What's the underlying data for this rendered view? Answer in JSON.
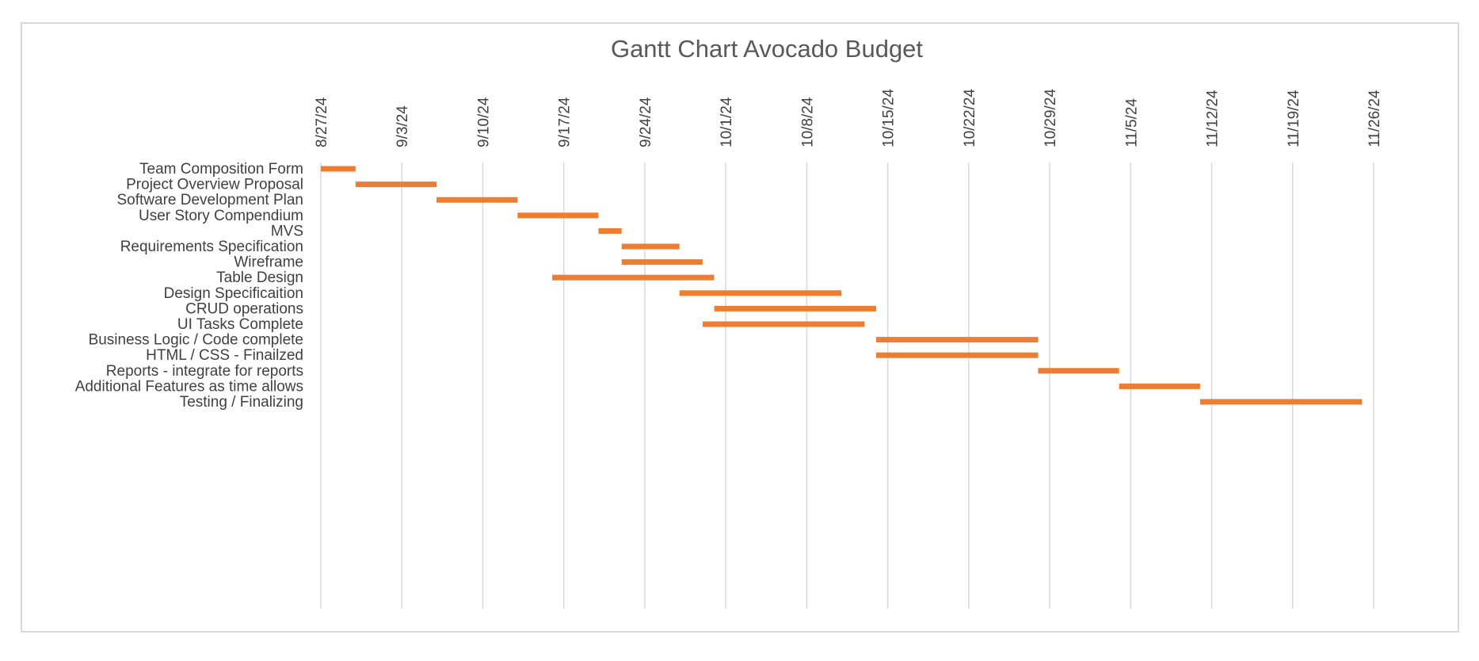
{
  "chart_data": {
    "type": "bar",
    "subtype": "gantt",
    "title": "Gantt Chart Avocado Budget",
    "xlabel": "",
    "ylabel": "",
    "x_axis_position": "top",
    "x_tick_labels": [
      "8/27/24",
      "9/3/24",
      "9/10/24",
      "9/17/24",
      "9/24/24",
      "10/1/24",
      "10/8/24",
      "10/15/24",
      "10/22/24",
      "10/29/24",
      "11/5/24",
      "11/12/24",
      "11/19/24",
      "11/26/24"
    ],
    "xlim": [
      "2024-08-27",
      "2024-11-26"
    ],
    "grid": "vertical",
    "bar_color": "#ed7d31",
    "tasks": [
      {
        "name": "Team Composition Form",
        "start": "2024-08-27",
        "end": "2024-08-30"
      },
      {
        "name": "Project Overview Proposal",
        "start": "2024-08-30",
        "end": "2024-09-06"
      },
      {
        "name": "Software Development Plan",
        "start": "2024-09-06",
        "end": "2024-09-13"
      },
      {
        "name": "User Story Compendium",
        "start": "2024-09-13",
        "end": "2024-09-20"
      },
      {
        "name": "MVS",
        "start": "2024-09-20",
        "end": "2024-09-22"
      },
      {
        "name": "Requirements Specification",
        "start": "2024-09-22",
        "end": "2024-09-27"
      },
      {
        "name": "Wireframe",
        "start": "2024-09-22",
        "end": "2024-09-29"
      },
      {
        "name": "Table Design",
        "start": "2024-09-16",
        "end": "2024-09-30"
      },
      {
        "name": "Design Specificaition",
        "start": "2024-09-27",
        "end": "2024-10-11"
      },
      {
        "name": "CRUD operations",
        "start": "2024-09-30",
        "end": "2024-10-14"
      },
      {
        "name": "UI Tasks Complete",
        "start": "2024-09-29",
        "end": "2024-10-13"
      },
      {
        "name": "Business Logic / Code complete",
        "start": "2024-10-14",
        "end": "2024-10-28"
      },
      {
        "name": "HTML / CSS - Finailzed",
        "start": "2024-10-14",
        "end": "2024-10-28"
      },
      {
        "name": "Reports - integrate for reports",
        "start": "2024-10-28",
        "end": "2024-11-04"
      },
      {
        "name": "Additional Features as time allows",
        "start": "2024-11-04",
        "end": "2024-11-11"
      },
      {
        "name": "Testing / Finalizing",
        "start": "2024-11-11",
        "end": "2024-11-25"
      }
    ]
  }
}
